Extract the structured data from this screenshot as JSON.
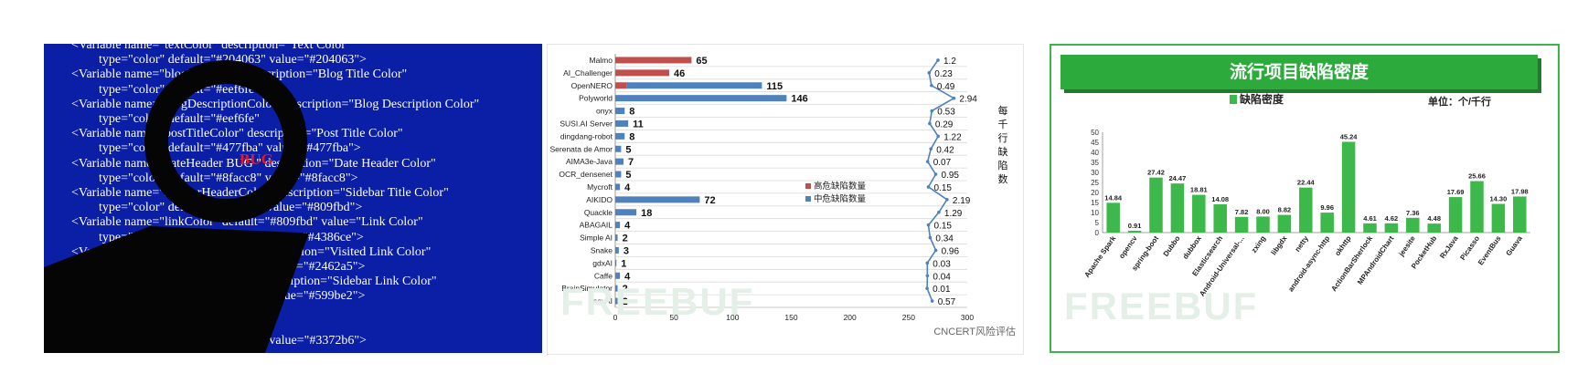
{
  "code_panel": {
    "lines": [
      "<Variable name=\"textColor\" description=\"Text Color\"",
      "type=\"color\" default=\"#204063\" value=\"#204063\">",
      "<Variable name=\"blogTitleColor\" description=\"Blog Title Color\"",
      "type=\"color\" default=\"#eef6fe\"",
      "<Variable name=\"blogDescriptionColor\" description=\"Blog Description Color\"",
      "type=\"color\" default=\"#eef6fe\"",
      "<Variable name=\"postTitleColor\" description=\"Post Title Color\"",
      "type=\"color\" default=\"#477fba\" value=\"#477fba\">",
      "<Variable name=\"dateHeader BUG \" description=\"Date Header Color\"",
      "type=\"color\" default=\"#8facc8\" value=\"#8facc8\">",
      "<Variable name=\"sidebarHeaderColor\" description=\"Sidebar Title Color\"",
      "type=\"color\" default=\"#809fbd\" value=\"#809fbd\">",
      "<Variable name=\"linkColor\" default=\"#809fbd\" value=\"Link Color\"",
      "type=\"color\" default=\"#4386ce\" value=\"#4386ce\">",
      "<Variable name=\"visitedLinkColor\" description=\"Visited Link Color\"",
      "type=\"color\" default=\"#2462a5\" value=\"#2462a5\">",
      "<Variable name=\"sidebarLinkColor\" description=\"Sidebar Link Color\"",
      "type=\"color\" default=\"#599be2\" value=\"#599be2\">",
      "<Variable name=\"visitedLinkColor\"",
      "description=\"Visited Link Color\"",
      "type=\"color\" default=\"#3372b6\" value=\"#3372b6\">"
    ],
    "bug_word": "BUG"
  },
  "chart_data": [
    {
      "type": "bar",
      "orientation": "horizontal",
      "categories": [
        "Malmo",
        "AI_Challenger",
        "OpenNERO",
        "Polyworld",
        "onyx",
        "SUSI.AI Server",
        "dingdang-robot",
        "Serenata de Amor",
        "AIMA3e-Java",
        "OCR_densenet",
        "Mycroft",
        "AIKIDO",
        "Quackle",
        "ABAGAIL",
        "Simple AI",
        "Snake",
        "gdxAI",
        "Caffe",
        "BrainSimulator",
        "EasyAI"
      ],
      "series": [
        {
          "name": "高危缺陷数量",
          "color": "#c0504d",
          "values": [
            65,
            46,
            10,
            0,
            0,
            0,
            0,
            0,
            0,
            0,
            0,
            0,
            0,
            0,
            0,
            0,
            0,
            0,
            0,
            0
          ]
        },
        {
          "name": "中危缺陷数量",
          "color": "#4f81bd",
          "values": [
            0,
            0,
            115,
            146,
            8,
            11,
            8,
            5,
            7,
            5,
            4,
            72,
            18,
            4,
            2,
            3,
            1,
            4,
            2,
            2
          ]
        }
      ],
      "bar_labels": [
        65,
        46,
        115,
        146,
        8,
        11,
        8,
        5,
        7,
        5,
        4,
        72,
        18,
        4,
        2,
        3,
        1,
        4,
        2,
        2
      ],
      "density_line": {
        "label_chars": [
          "每",
          "千",
          "行",
          "缺",
          "陷",
          "数"
        ],
        "values": [
          1.2,
          0.23,
          0.49,
          2.94,
          0.53,
          0.29,
          1.22,
          0.42,
          0.07,
          0.95,
          0.15,
          2.19,
          1.29,
          0.15,
          0.34,
          0.96,
          0.03,
          0.04,
          0.01,
          0.57
        ],
        "color": "#4f81bd"
      },
      "xlim": [
        0,
        300
      ],
      "xticks": [
        0,
        50,
        100,
        150,
        200,
        250,
        300
      ],
      "legend_position": "center-right",
      "watermark": "FREEBUF",
      "credit": "CNCERT风险评估"
    },
    {
      "type": "bar",
      "title": "流行项目缺陷密度",
      "legend": "缺陷密度",
      "unit_label": "单位：个/千行",
      "categories": [
        "Apache Spark",
        "opencv",
        "spring-boot",
        "Dubbo",
        "dubbox",
        "Elasticsearch",
        "Android-Universal-...",
        "zxing",
        "libgdx",
        "netty",
        "android-async-http",
        "okhttp",
        "ActionBarSherlock",
        "MPAndroidChart",
        "jeesite",
        "PocketHub",
        "RxJava",
        "Picasso",
        "EventBus",
        "Guava"
      ],
      "values": [
        14.84,
        0.91,
        27.42,
        24.47,
        18.81,
        14.08,
        7.82,
        8.0,
        8.82,
        22.44,
        9.96,
        45.24,
        4.61,
        4.62,
        7.36,
        4.48,
        17.69,
        25.66,
        14.3,
        17.98
      ],
      "value_labels": [
        "14.84",
        "0.91",
        "27.42",
        "24.47",
        "18.81",
        "14.08",
        "7.82",
        "8.00",
        "8.82",
        "22.44",
        "9.96",
        "45.24",
        "4.61",
        "4.62",
        "7.36",
        "4.48",
        "17.69",
        "25.66",
        "14.30",
        "17.98"
      ],
      "ylim": [
        0,
        50
      ],
      "yticks": [
        0,
        5,
        10,
        15,
        20,
        25,
        30,
        35,
        40,
        45,
        50
      ],
      "color": "#3cb94a",
      "watermark": "FREEBUF"
    }
  ]
}
